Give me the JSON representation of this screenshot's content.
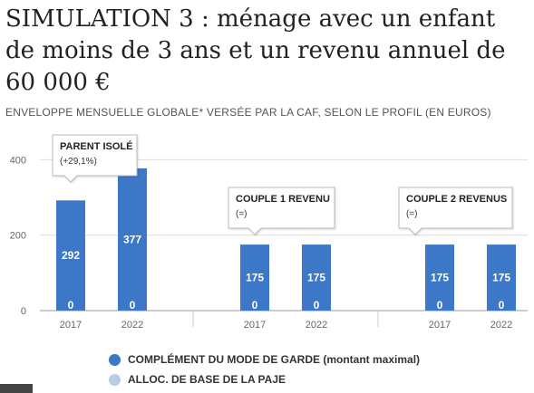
{
  "header": {
    "title": "SIMULATION 3 : ménage avec un enfant de moins de 3 ans et un revenu annuel de 60 000 €",
    "subtitle": "ENVELOPPE MENSUELLE GLOBALE* VERSÉE PAR LA CAF, SELON LE PROFIL (EN EUROS)"
  },
  "chart_data": {
    "type": "bar",
    "stacked": true,
    "groups": [
      {
        "label": "PARENT ISOLÉ",
        "note": "(+29,1%)",
        "categories": [
          "2017",
          "2022"
        ]
      },
      {
        "label": "COUPLE 1 REVENU",
        "note": "(=)",
        "categories": [
          "2017",
          "2022"
        ]
      },
      {
        "label": "COUPLE 2 REVENUS",
        "note": "(=)",
        "categories": [
          "2017",
          "2022"
        ]
      }
    ],
    "categories": [
      "2017",
      "2022",
      "2017",
      "2022",
      "2017",
      "2022"
    ],
    "series": [
      {
        "name": "COMPLÉMENT DU MODE DE GARDE (montant maximal)",
        "color": "#3d78c8",
        "values": [
          292,
          377,
          175,
          175,
          175,
          175
        ]
      },
      {
        "name": "ALLOC. DE BASE DE LA PAJE",
        "color": "#b8cce6",
        "values": [
          0,
          0,
          0,
          0,
          0,
          0
        ]
      }
    ],
    "yticks": [
      0,
      200,
      400
    ],
    "ylim": [
      0,
      420
    ],
    "grid": true,
    "legend_position": "bottom"
  },
  "colors": {
    "bar": "#3d78c8",
    "bar_light": "#b8cce6",
    "grid": "#dddddd",
    "text": "#222222"
  }
}
